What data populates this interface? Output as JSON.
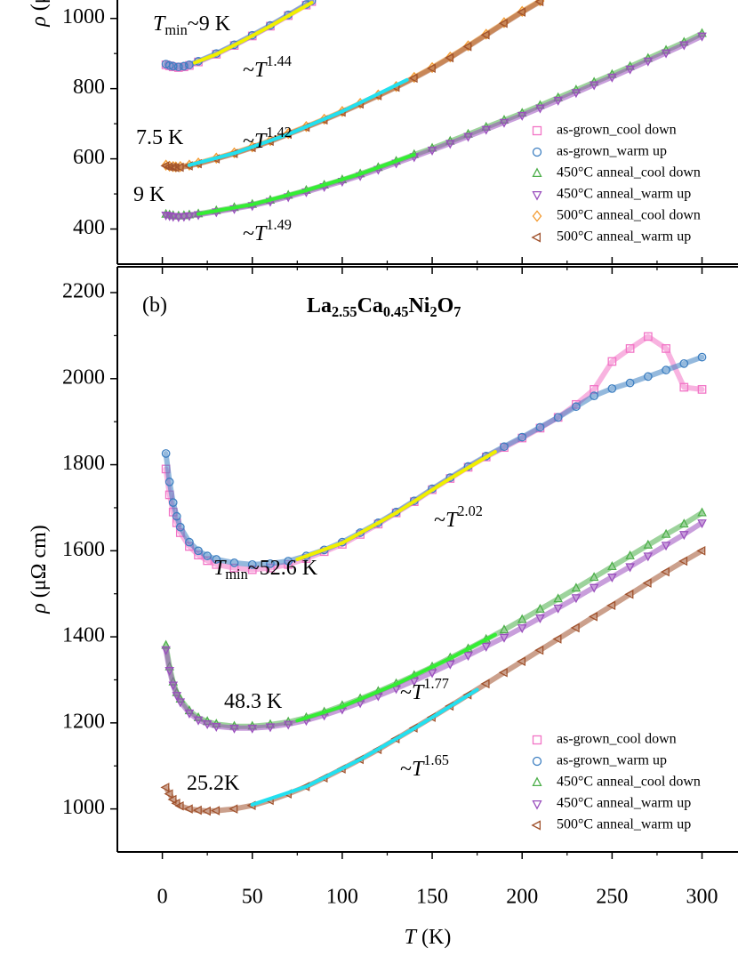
{
  "chart_data": [
    {
      "type": "scatter",
      "ylabel": [
        {
          "text": "ρ",
          "style": "italic"
        },
        {
          "text": " (μΩ cm)"
        }
      ],
      "xlim": [
        -25,
        320
      ],
      "ylim": [
        300,
        1050
      ],
      "yticks": [
        400,
        600,
        800,
        1000
      ],
      "legend": "lower right",
      "series": [
        {
          "name": "as-grown_cool down",
          "color": "#f274c6",
          "marker": "square",
          "x": [
            2,
            4,
            6,
            9,
            12,
            15,
            20,
            30,
            40,
            50,
            60,
            70,
            80,
            83
          ],
          "values": [
            868,
            865,
            862,
            860,
            862,
            866,
            876,
            898,
            923,
            950,
            978,
            1008,
            1038,
            1048
          ]
        },
        {
          "name": "as-grown_warm up",
          "color": "#3d7fc1",
          "marker": "circle",
          "x": [
            2,
            4,
            6,
            9,
            12,
            15,
            20,
            30,
            40,
            50,
            60,
            70,
            80,
            83
          ],
          "values": [
            870,
            866,
            864,
            862,
            864,
            868,
            878,
            900,
            925,
            952,
            980,
            1010,
            1040,
            1050
          ]
        },
        {
          "name": "450°C anneal_cool down",
          "color": "#4daf4a",
          "marker": "triangle-up",
          "x": [
            2,
            4,
            6,
            9,
            12,
            15,
            20,
            30,
            40,
            50,
            60,
            70,
            80,
            90,
            100,
            110,
            120,
            130,
            140,
            150,
            160,
            170,
            180,
            190,
            200,
            210,
            220,
            230,
            240,
            250,
            260,
            270,
            280,
            290,
            300
          ],
          "values": [
            442,
            440,
            438,
            437,
            438,
            440,
            443,
            452,
            461,
            470,
            482,
            496,
            510,
            525,
            540,
            557,
            575,
            593,
            612,
            630,
            650,
            670,
            690,
            710,
            730,
            752,
            774,
            796,
            818,
            840,
            863,
            886,
            909,
            932,
            957
          ]
        },
        {
          "name": "450°C anneal_warm up",
          "color": "#9a4fbd",
          "marker": "triangle-down",
          "x": [
            2,
            4,
            6,
            9,
            12,
            15,
            20,
            30,
            40,
            50,
            60,
            70,
            80,
            90,
            100,
            110,
            120,
            130,
            140,
            150,
            160,
            170,
            180,
            190,
            200,
            210,
            220,
            230,
            240,
            250,
            260,
            270,
            280,
            290,
            300
          ],
          "values": [
            440,
            438,
            436,
            435,
            436,
            438,
            441,
            449,
            458,
            467,
            479,
            492,
            506,
            521,
            536,
            552,
            570,
            588,
            606,
            625,
            644,
            664,
            684,
            704,
            724,
            745,
            767,
            789,
            811,
            833,
            856,
            879,
            902,
            925,
            950
          ]
        },
        {
          "name": "500°C anneal_cool down",
          "color": "#f39a2e",
          "marker": "diamond",
          "x": [
            2,
            4,
            6,
            7.5,
            10,
            15,
            20,
            30,
            40,
            50,
            60,
            70,
            80,
            90,
            100,
            110,
            120,
            130,
            140,
            150,
            160,
            170,
            180,
            190,
            200,
            210
          ],
          "values": [
            582,
            579,
            578,
            577,
            578,
            582,
            588,
            602,
            617,
            634,
            652,
            672,
            692,
            713,
            735,
            758,
            782,
            806,
            832,
            860,
            890,
            922,
            955,
            988,
            1020,
            1050
          ]
        },
        {
          "name": "500°C anneal_warm up",
          "color": "#a0522d",
          "marker": "triangle-left",
          "x": [
            2,
            4,
            6,
            7.5,
            10,
            15,
            20,
            30,
            40,
            50,
            60,
            70,
            80,
            90,
            100,
            110,
            120,
            130,
            140,
            150,
            160,
            170,
            180,
            190,
            200,
            210
          ],
          "values": [
            580,
            577,
            576,
            575,
            576,
            580,
            586,
            600,
            615,
            632,
            650,
            670,
            690,
            711,
            733,
            756,
            780,
            804,
            830,
            858,
            888,
            920,
            953,
            986,
            1018,
            1048
          ]
        }
      ],
      "fits": [
        {
          "color": "#f0f000",
          "x": [
            18,
            30,
            45,
            60,
            75,
            83
          ],
          "values": [
            874,
            898,
            937,
            978,
            1022,
            1045
          ]
        },
        {
          "color": "#22e0f0",
          "x": [
            15,
            40,
            70,
            100,
            136
          ],
          "values": [
            582,
            616,
            670,
            735,
            825
          ]
        },
        {
          "color": "#33ee33",
          "x": [
            20,
            50,
            80,
            110,
            140
          ],
          "values": [
            443,
            470,
            510,
            557,
            612
          ]
        }
      ],
      "annotations": [
        [
          {
            "text": "T",
            "style": "italic"
          },
          {
            "text": "min",
            "style": "sub"
          },
          {
            "text": "~9 K"
          }
        ],
        [
          {
            "text": "~"
          },
          {
            "text": "T",
            "style": "italic"
          },
          {
            "text": "1.44",
            "style": "sup"
          }
        ],
        [
          {
            "text": "7.5 K"
          }
        ],
        [
          {
            "text": "~"
          },
          {
            "text": "T",
            "style": "italic"
          },
          {
            "text": "1.42",
            "style": "sup"
          }
        ],
        [
          {
            "text": "9 K"
          }
        ],
        [
          {
            "text": "~"
          },
          {
            "text": "T",
            "style": "italic"
          },
          {
            "text": "1.49",
            "style": "sup"
          }
        ]
      ]
    },
    {
      "type": "scatter",
      "panel_label": "(b)",
      "title": [
        {
          "text": "La"
        },
        {
          "text": "2.55",
          "style": "sub"
        },
        {
          "text": "Ca"
        },
        {
          "text": "0.45",
          "style": "sub"
        },
        {
          "text": "Ni"
        },
        {
          "text": "2",
          "style": "sub"
        },
        {
          "text": "O"
        },
        {
          "text": "7",
          "style": "sub"
        }
      ],
      "title_color": "#1f3fe6",
      "xlabel": [
        {
          "text": "T",
          "style": "italic"
        },
        {
          "text": " (K)"
        }
      ],
      "ylabel": [
        {
          "text": "ρ",
          "style": "italic"
        },
        {
          "text": " (μΩ cm)"
        }
      ],
      "xlim": [
        -25,
        320
      ],
      "ylim": [
        900,
        2260
      ],
      "xticks": [
        0,
        50,
        100,
        150,
        200,
        250,
        300
      ],
      "yticks": [
        1000,
        1200,
        1400,
        1600,
        1800,
        2000,
        2200
      ],
      "legend": "lower right",
      "series": [
        {
          "name": "as-grown_cool down",
          "color": "#f274c6",
          "marker": "square",
          "x": [
            2,
            4,
            6,
            8,
            10,
            15,
            20,
            25,
            30,
            40,
            50,
            60,
            70,
            80,
            90,
            100,
            110,
            120,
            130,
            140,
            150,
            160,
            170,
            180,
            190,
            200,
            210,
            220,
            230,
            240,
            250,
            260,
            270,
            280,
            290,
            300
          ],
          "values": [
            1790,
            1730,
            1690,
            1665,
            1642,
            1610,
            1590,
            1577,
            1568,
            1560,
            1556,
            1560,
            1568,
            1582,
            1598,
            1615,
            1638,
            1662,
            1688,
            1714,
            1742,
            1768,
            1794,
            1818,
            1840,
            1862,
            1885,
            1910,
            1940,
            1975,
            2040,
            2070,
            2098,
            2070,
            1980,
            1975
          ]
        },
        {
          "name": "as-grown_warm up",
          "color": "#3d7fc1",
          "marker": "circle",
          "x": [
            2,
            4,
            6,
            8,
            10,
            15,
            20,
            25,
            30,
            40,
            50,
            60,
            70,
            80,
            90,
            100,
            110,
            120,
            130,
            140,
            150,
            160,
            170,
            180,
            190,
            200,
            210,
            220,
            230,
            240,
            250,
            260,
            270,
            280,
            290,
            300
          ],
          "values": [
            1826,
            1760,
            1712,
            1680,
            1655,
            1620,
            1600,
            1588,
            1580,
            1572,
            1568,
            1570,
            1576,
            1588,
            1602,
            1620,
            1642,
            1665,
            1690,
            1716,
            1744,
            1770,
            1796,
            1820,
            1842,
            1864,
            1887,
            1910,
            1935,
            1960,
            1977,
            1990,
            2005,
            2020,
            2035,
            2050
          ]
        },
        {
          "name": "450°C anneal_cool down",
          "color": "#4daf4a",
          "marker": "triangle-up",
          "x": [
            2,
            4,
            6,
            8,
            10,
            15,
            20,
            25,
            30,
            40,
            50,
            60,
            70,
            80,
            90,
            100,
            110,
            120,
            130,
            140,
            150,
            160,
            170,
            180,
            190,
            200,
            210,
            220,
            230,
            240,
            250,
            260,
            270,
            280,
            290,
            300
          ],
          "values": [
            1380,
            1330,
            1295,
            1270,
            1255,
            1228,
            1212,
            1203,
            1197,
            1192,
            1192,
            1196,
            1202,
            1212,
            1225,
            1240,
            1256,
            1273,
            1291,
            1310,
            1330,
            1351,
            1372,
            1394,
            1416,
            1440,
            1464,
            1488,
            1513,
            1538,
            1563,
            1588,
            1613,
            1638,
            1662,
            1688
          ]
        },
        {
          "name": "450°C anneal_warm up",
          "color": "#9a4fbd",
          "marker": "triangle-down",
          "x": [
            2,
            4,
            6,
            8,
            10,
            15,
            20,
            25,
            30,
            40,
            50,
            60,
            70,
            80,
            90,
            100,
            110,
            120,
            130,
            140,
            150,
            160,
            170,
            180,
            190,
            200,
            210,
            220,
            230,
            240,
            250,
            260,
            270,
            280,
            290,
            300
          ],
          "values": [
            1370,
            1322,
            1288,
            1264,
            1249,
            1223,
            1207,
            1198,
            1192,
            1188,
            1188,
            1191,
            1197,
            1206,
            1218,
            1232,
            1247,
            1263,
            1280,
            1298,
            1317,
            1337,
            1357,
            1378,
            1399,
            1421,
            1444,
            1467,
            1491,
            1515,
            1539,
            1563,
            1588,
            1613,
            1638,
            1665
          ]
        },
        {
          "name": "500°C anneal_warm up",
          "color": "#a0522d",
          "marker": "triangle-left",
          "x": [
            2,
            4,
            6,
            8,
            10,
            15,
            20,
            25,
            30,
            40,
            50,
            60,
            70,
            80,
            90,
            100,
            110,
            120,
            130,
            140,
            150,
            160,
            170,
            180,
            190,
            200,
            210,
            220,
            230,
            240,
            250,
            260,
            270,
            280,
            290,
            300
          ],
          "values": [
            1050,
            1035,
            1022,
            1013,
            1007,
            1000,
            997,
            995,
            996,
            1000,
            1008,
            1020,
            1035,
            1052,
            1072,
            1093,
            1115,
            1138,
            1163,
            1188,
            1213,
            1239,
            1265,
            1291,
            1317,
            1343,
            1369,
            1395,
            1421,
            1447,
            1473,
            1499,
            1525,
            1551,
            1576,
            1600
          ]
        }
      ],
      "fits": [
        {
          "color": "#f0f000",
          "x": [
            75,
            100,
            130,
            160,
            185
          ],
          "values": [
            1580,
            1618,
            1688,
            1768,
            1830
          ]
        },
        {
          "color": "#33ee33",
          "x": [
            75,
            100,
            130,
            160,
            185
          ],
          "values": [
            1205,
            1238,
            1290,
            1350,
            1405
          ]
        },
        {
          "color": "#22e0f0",
          "x": [
            50,
            80,
            110,
            140,
            175
          ],
          "values": [
            1010,
            1052,
            1115,
            1187,
            1277
          ]
        }
      ],
      "annotations": [
        [
          {
            "text": "~"
          },
          {
            "text": "T",
            "style": "italic"
          },
          {
            "text": "2.02",
            "style": "sup"
          }
        ],
        [
          {
            "text": "T",
            "style": "italic"
          },
          {
            "text": "min",
            "style": "sub"
          },
          {
            "text": "~52.6 K"
          }
        ],
        [
          {
            "text": "48.3 K"
          }
        ],
        [
          {
            "text": "~"
          },
          {
            "text": "T",
            "style": "italic"
          },
          {
            "text": "1.77",
            "style": "sup"
          }
        ],
        [
          {
            "text": "25.2K"
          }
        ],
        [
          {
            "text": "~"
          },
          {
            "text": "T",
            "style": "italic"
          },
          {
            "text": "1.65",
            "style": "sup"
          }
        ]
      ]
    }
  ]
}
